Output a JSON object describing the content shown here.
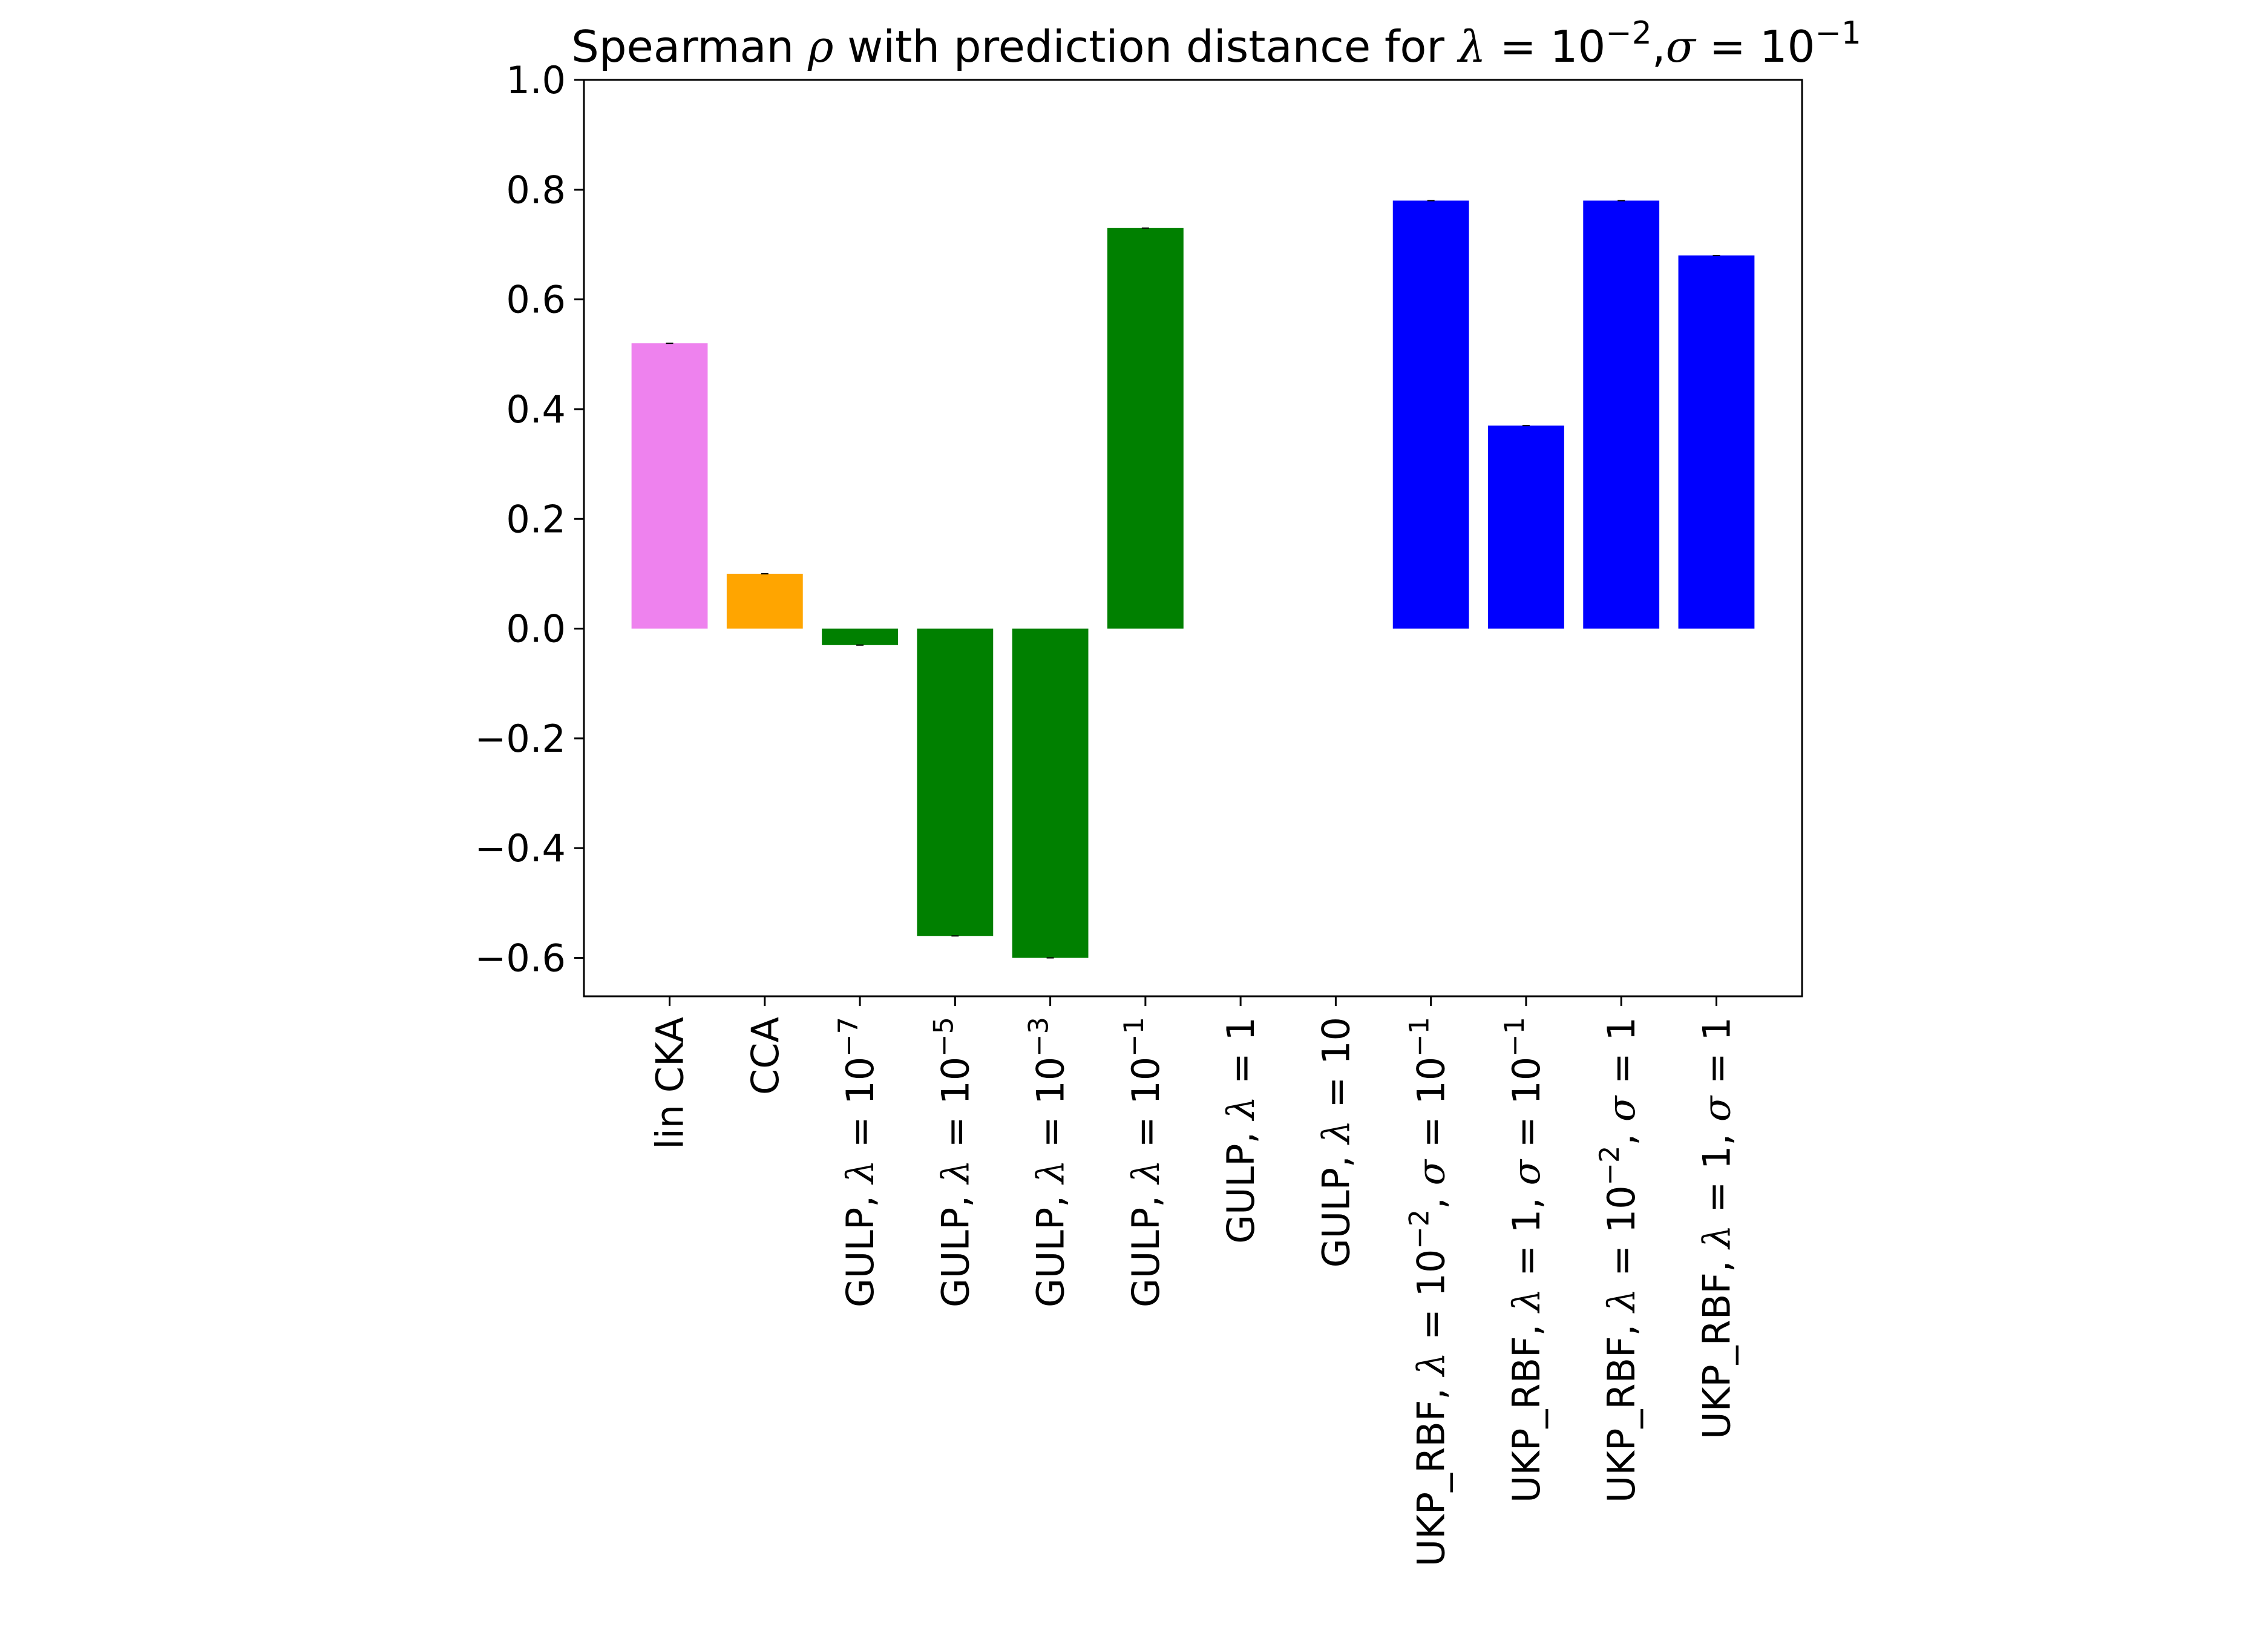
{
  "chart_data": {
    "type": "bar",
    "title": {
      "segments": [
        {
          "t": "Spearman "
        },
        {
          "t": "ρ",
          "italic": true
        },
        {
          "t": " with prediction distance for "
        },
        {
          "t": "λ",
          "italic": true
        },
        {
          "t": " = 10"
        },
        {
          "t": "−2",
          "sup": true
        },
        {
          "t": ","
        },
        {
          "t": "σ",
          "italic": true
        },
        {
          "t": " = 10"
        },
        {
          "t": "−1",
          "sup": true
        }
      ]
    },
    "xlabel": "",
    "ylabel": "",
    "ylim": [
      -0.67,
      1.0
    ],
    "yticks": [
      1.0,
      0.8,
      0.6,
      0.4,
      0.2,
      0.0,
      -0.2,
      -0.4,
      -0.6
    ],
    "ytick_labels": [
      "1.0",
      "0.8",
      "0.6",
      "0.4",
      "0.2",
      "0.0",
      "−0.2",
      "−0.4",
      "−0.6"
    ],
    "grid": false,
    "categories": [
      "lin CKA",
      "CCA",
      "GULP, λ = 10−7",
      "GULP, λ = 10−5",
      "GULP, λ = 10−3",
      "GULP, λ = 10−1",
      "GULP, λ = 1",
      "GULP, λ = 10",
      "UKP_RBF, λ = 10−2, σ = 10−1",
      "UKP_RBF, λ = 1, σ = 10−1",
      "UKP_RBF, λ = 10−2, σ = 1",
      "UKP_RBF, λ = 1, σ = 1"
    ],
    "category_labels": [
      [
        {
          "t": "lin CKA"
        }
      ],
      [
        {
          "t": "CCA"
        }
      ],
      [
        {
          "t": "GULP, "
        },
        {
          "t": "λ",
          "italic": true
        },
        {
          "t": " = 10"
        },
        {
          "t": "−7",
          "sup": true
        }
      ],
      [
        {
          "t": "GULP, "
        },
        {
          "t": "λ",
          "italic": true
        },
        {
          "t": " = 10"
        },
        {
          "t": "−5",
          "sup": true
        }
      ],
      [
        {
          "t": "GULP, "
        },
        {
          "t": "λ",
          "italic": true
        },
        {
          "t": " = 10"
        },
        {
          "t": "−3",
          "sup": true
        }
      ],
      [
        {
          "t": "GULP, "
        },
        {
          "t": "λ",
          "italic": true
        },
        {
          "t": " = 10"
        },
        {
          "t": "−1",
          "sup": true
        }
      ],
      [
        {
          "t": "GULP, "
        },
        {
          "t": "λ",
          "italic": true
        },
        {
          "t": " = 1"
        }
      ],
      [
        {
          "t": "GULP, "
        },
        {
          "t": "λ",
          "italic": true
        },
        {
          "t": " = 10"
        }
      ],
      [
        {
          "t": "UKP_RBF, "
        },
        {
          "t": "λ",
          "italic": true
        },
        {
          "t": " = 10"
        },
        {
          "t": "−2",
          "sup": true
        },
        {
          "t": ", "
        },
        {
          "t": "σ",
          "italic": true
        },
        {
          "t": " = 10"
        },
        {
          "t": "−1",
          "sup": true
        }
      ],
      [
        {
          "t": "UKP_RBF, "
        },
        {
          "t": "λ",
          "italic": true
        },
        {
          "t": " = 1, "
        },
        {
          "t": "σ",
          "italic": true
        },
        {
          "t": " = 10"
        },
        {
          "t": "−1",
          "sup": true
        }
      ],
      [
        {
          "t": "UKP_RBF, "
        },
        {
          "t": "λ",
          "italic": true
        },
        {
          "t": " = 10"
        },
        {
          "t": "−2",
          "sup": true
        },
        {
          "t": ", "
        },
        {
          "t": "σ",
          "italic": true
        },
        {
          "t": " = 1"
        }
      ],
      [
        {
          "t": "UKP_RBF, "
        },
        {
          "t": "λ",
          "italic": true
        },
        {
          "t": " = 1, "
        },
        {
          "t": "σ",
          "italic": true
        },
        {
          "t": " = 1"
        }
      ]
    ],
    "values": [
      0.52,
      0.1,
      -0.03,
      -0.56,
      -0.6,
      0.73,
      null,
      null,
      0.78,
      0.37,
      0.78,
      0.68
    ],
    "colors": [
      "#ee82ee",
      "#ffa500",
      "#008000",
      "#008000",
      "#008000",
      "#008000",
      "#008000",
      "#008000",
      "#0000ff",
      "#0000ff",
      "#0000ff",
      "#0000ff"
    ]
  }
}
